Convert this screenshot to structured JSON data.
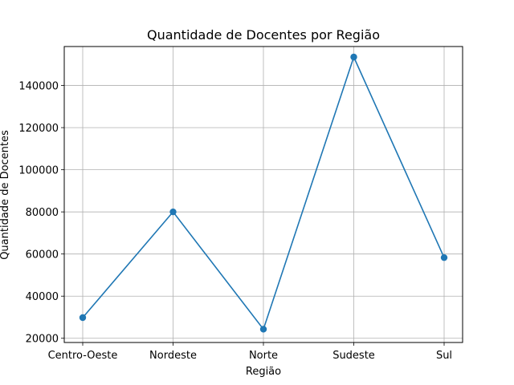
{
  "chart_data": {
    "type": "line",
    "title": "Quantidade de Docentes por Região",
    "xlabel": "Região",
    "ylabel": "Quantidade de Docentes",
    "categories": [
      "Centro-Oeste",
      "Nordeste",
      "Norte",
      "Sudeste",
      "Sul"
    ],
    "series": [
      {
        "values": [
          29800,
          80000,
          24300,
          153500,
          58300
        ]
      }
    ],
    "ylim": [
      18000,
      158500
    ],
    "yticks": [
      20000,
      40000,
      60000,
      80000,
      100000,
      120000,
      140000
    ],
    "ytick_labels": [
      "20000",
      "40000",
      "60000",
      "80000",
      "100000",
      "120000",
      "140000"
    ],
    "grid": true,
    "markers": true,
    "colors": {
      "line": "#1f77b4",
      "grid": "#b0b0b0"
    }
  }
}
